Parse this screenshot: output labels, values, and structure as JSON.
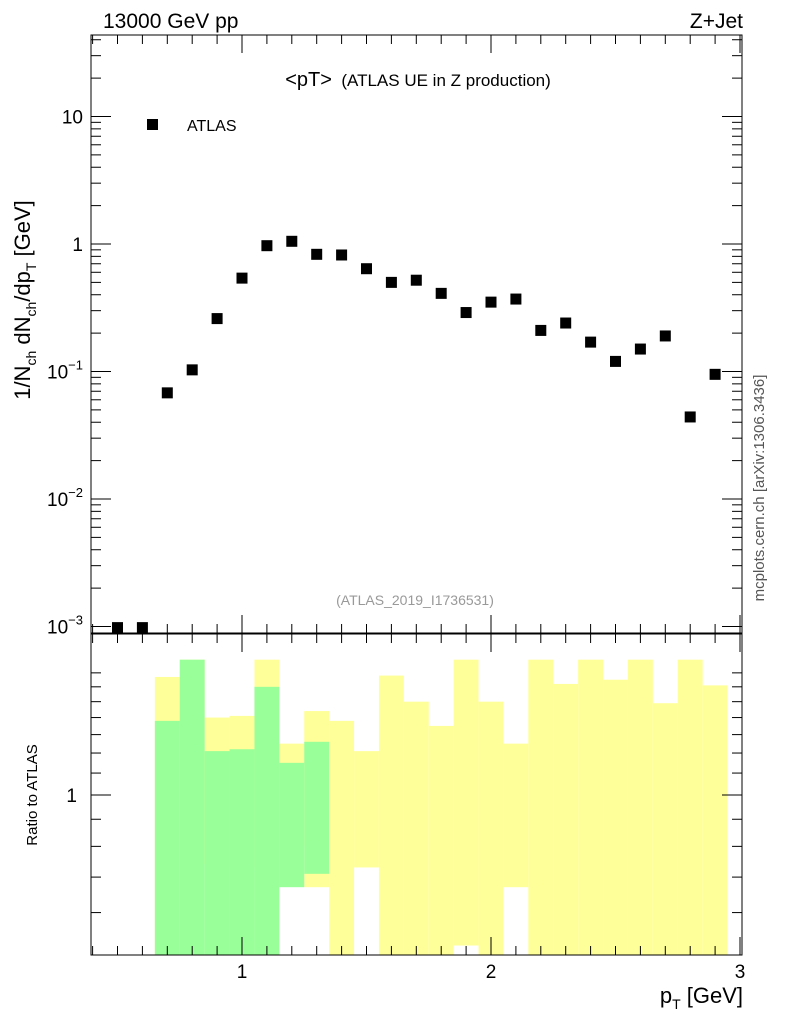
{
  "header": {
    "left": "13000 GeV pp",
    "right": "Z+Jet"
  },
  "plot_title": {
    "observable": "<pT>",
    "description": "(ATLAS UE in Z production)"
  },
  "legend": {
    "label": "ATLAS",
    "placement": "top-left"
  },
  "analysis_tag": "(ATLAS_2019_I1736531)",
  "side_label": "mcplots.cern.ch [arXiv:1306.3436]",
  "colors": {
    "marker": "#000000",
    "band_yellow": "#ffff99",
    "band_green": "#99ff99",
    "tag_gray": "#999999"
  },
  "chart_data": [
    {
      "type": "scatter",
      "y_scale": "log",
      "ylim": [
        0.001,
        45
      ],
      "xlim": [
        0.4,
        3.0
      ],
      "ylabel": "1/N_ch dN_ch/dp_T [GeV]",
      "y_ticks": [
        {
          "value": 0.001,
          "base": "10",
          "exp": "−3"
        },
        {
          "value": 0.01,
          "base": "10",
          "exp": "−2"
        },
        {
          "value": 0.1,
          "base": "10",
          "exp": "−1"
        },
        {
          "value": 1,
          "base": "1",
          "exp": ""
        },
        {
          "value": 10,
          "base": "10",
          "exp": ""
        }
      ],
      "series": [
        {
          "name": "ATLAS",
          "x": [
            0.5,
            0.6,
            0.7,
            0.8,
            0.9,
            1.0,
            1.1,
            1.2,
            1.3,
            1.4,
            1.5,
            1.6,
            1.7,
            1.8,
            1.9,
            2.0,
            2.1,
            2.2,
            2.3,
            2.4,
            2.5,
            2.6,
            2.7,
            2.8,
            2.9
          ],
          "y": [
            0.00098,
            0.00098,
            0.068,
            0.103,
            0.26,
            0.54,
            0.97,
            1.05,
            0.83,
            0.82,
            0.64,
            0.5,
            0.52,
            0.41,
            0.29,
            0.35,
            0.37,
            0.21,
            0.24,
            0.17,
            0.12,
            0.15,
            0.19,
            0.044,
            0.095
          ]
        }
      ]
    },
    {
      "type": "area",
      "ylabel": "Ratio to ATLAS",
      "xlabel": "p_T [GeV]",
      "y_scale": "log",
      "ylim": [
        0.5,
        1.8
      ],
      "xlim": [
        0.4,
        3.0
      ],
      "x_ticks": [
        {
          "value": 1,
          "label": "1"
        },
        {
          "value": 2,
          "label": "2"
        },
        {
          "value": 3,
          "label": "3"
        }
      ],
      "y_ticks": [
        {
          "value": 1,
          "label": "1"
        }
      ],
      "bin_edges": [
        0.65,
        0.75,
        0.85,
        0.95,
        1.05,
        1.15,
        1.25,
        1.35,
        1.45,
        1.55,
        1.65,
        1.75,
        1.85,
        1.95,
        2.05,
        2.15,
        2.25,
        2.35,
        2.45,
        2.55,
        2.65,
        2.75,
        2.85,
        2.95
      ],
      "series": [
        {
          "color": "yellow",
          "low": [
            0.5,
            0.5,
            0.74,
            0.73,
            0.5,
            0.8,
            0.67,
            0.5,
            0.73,
            0.5,
            0.5,
            0.5,
            0.52,
            0.5,
            0.67,
            0.5,
            0.5,
            0.5,
            0.5,
            0.5,
            0.5,
            0.5,
            0.5
          ],
          "high": [
            1.67,
            1.8,
            1.4,
            1.41,
            1.8,
            1.25,
            1.44,
            1.38,
            1.21,
            1.68,
            1.5,
            1.35,
            1.8,
            1.5,
            1.25,
            1.8,
            1.62,
            1.8,
            1.65,
            1.8,
            1.49,
            1.8,
            1.61
          ]
        },
        {
          "color": "green",
          "low": [
            0.5,
            0.5,
            0.5,
            0.5,
            0.5,
            0.67,
            0.71
          ],
          "high": [
            1.38,
            1.8,
            1.21,
            1.22,
            1.6,
            1.15,
            1.26
          ]
        }
      ]
    }
  ]
}
